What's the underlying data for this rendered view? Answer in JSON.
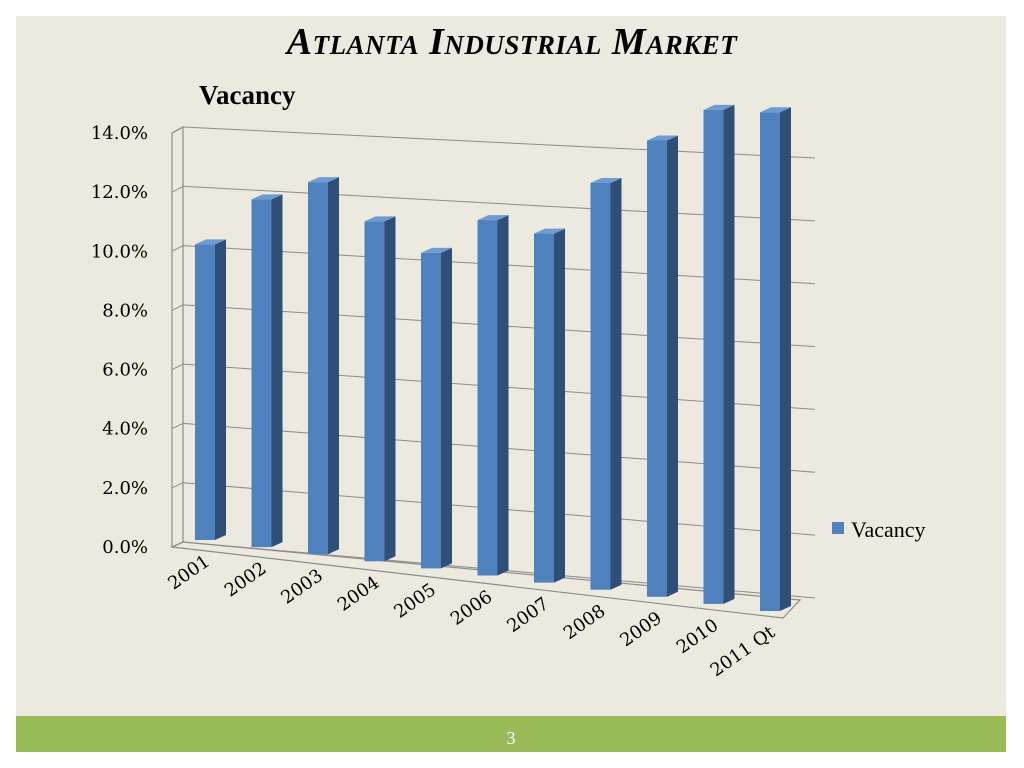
{
  "slide": {
    "title": "Atlanta Industrial Market",
    "subtitle": "Vacancy",
    "page_number": "3"
  },
  "colors": {
    "background": "#ece9df",
    "footer_bar": "#9bbb59",
    "bar_front": "#4f81bd",
    "bar_side": "#2f4f77",
    "bar_top": "#6f9bd3"
  },
  "chart_data": {
    "type": "bar",
    "style": "3d-column",
    "categories": [
      "2001",
      "2002",
      "2003",
      "2004",
      "2005",
      "2006",
      "2007",
      "2008",
      "2009",
      "2010",
      "2011 Qt"
    ],
    "series": [
      {
        "name": "Vacancy",
        "values": [
          10.4,
          12.0,
          12.6,
          11.3,
          10.3,
          11.4,
          11.0,
          12.6,
          13.9,
          14.8,
          14.7
        ]
      }
    ],
    "yticks": [
      "0.0%",
      "2.0%",
      "4.0%",
      "6.0%",
      "8.0%",
      "10.0%",
      "12.0%",
      "14.0%"
    ],
    "ylim": [
      0,
      14
    ],
    "grid": true,
    "legend": "right"
  }
}
